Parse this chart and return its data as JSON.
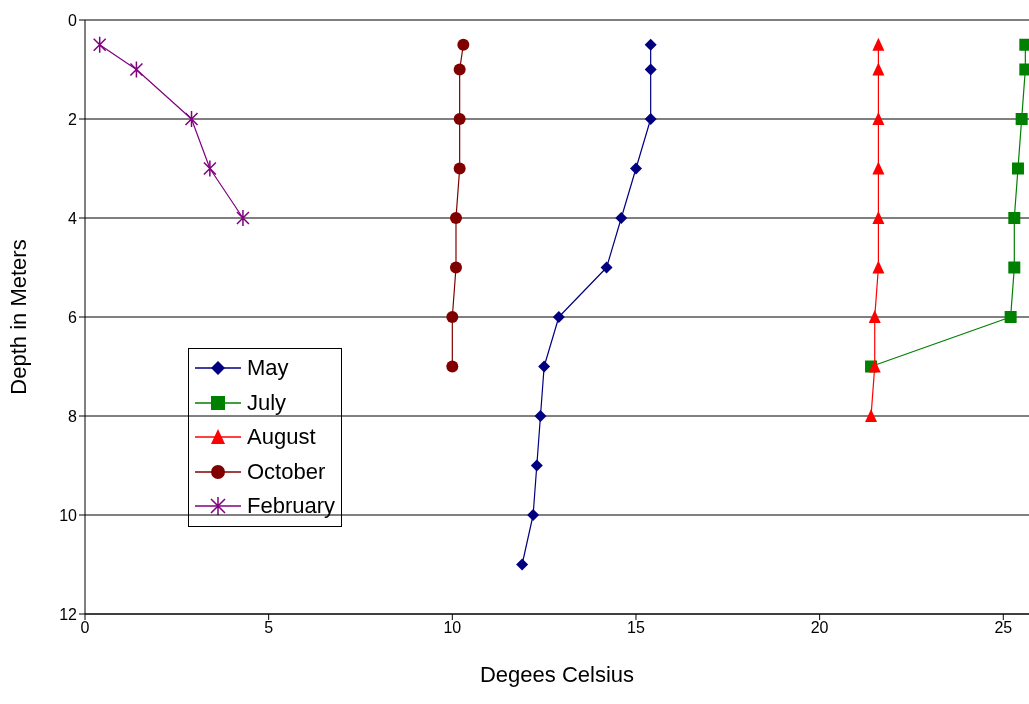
{
  "chart_data": {
    "type": "line",
    "xlabel": "Degees Celsius",
    "ylabel": "Depth in Meters",
    "xlim": [
      0,
      25.7
    ],
    "xticks": [
      0,
      5,
      10,
      15,
      20,
      25
    ],
    "ylim": [
      12,
      0
    ],
    "yticks": [
      0,
      2,
      4,
      6,
      8,
      10,
      12
    ],
    "grid": "y",
    "legend": "left",
    "series": [
      {
        "name": "May",
        "color": "#000080",
        "marker": "diamond",
        "x": [
          15.4,
          15.4,
          15.4,
          15.0,
          14.6,
          14.2,
          12.9,
          12.5,
          12.4,
          12.3,
          12.2,
          11.9
        ],
        "values": [
          0.5,
          1,
          2,
          3,
          4,
          5,
          6,
          7,
          8,
          9,
          10,
          11
        ]
      },
      {
        "name": "July",
        "color": "#008000",
        "marker": "square",
        "x": [
          25.6,
          25.6,
          25.5,
          25.4,
          25.3,
          25.3,
          25.2,
          21.4
        ],
        "values": [
          0.5,
          1,
          2,
          3,
          4,
          5,
          6,
          7
        ]
      },
      {
        "name": "August",
        "color": "#ff0000",
        "marker": "triangle",
        "x": [
          21.6,
          21.6,
          21.6,
          21.6,
          21.6,
          21.6,
          21.5,
          21.5,
          21.4
        ],
        "values": [
          0.5,
          1,
          2,
          3,
          4,
          5,
          6,
          7,
          8
        ]
      },
      {
        "name": "October",
        "color": "#800000",
        "marker": "circle",
        "x": [
          10.3,
          10.2,
          10.2,
          10.2,
          10.1,
          10.1,
          10.0,
          10.0
        ],
        "values": [
          0.5,
          1,
          2,
          3,
          4,
          5,
          6,
          7
        ]
      },
      {
        "name": "February",
        "color": "#800080",
        "marker": "cross",
        "x": [
          0.4,
          1.4,
          2.9,
          3.4,
          4.3
        ],
        "values": [
          0.5,
          1,
          2,
          3,
          4
        ]
      }
    ]
  }
}
